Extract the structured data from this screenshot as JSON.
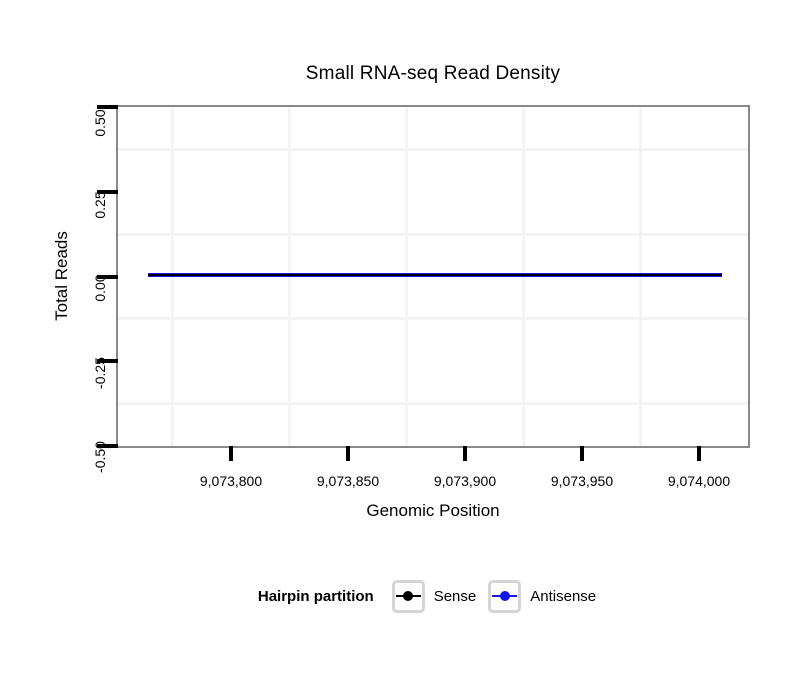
{
  "chart_data": {
    "type": "line",
    "title": "Small RNA-seq Read Density",
    "xlabel": "Genomic Position",
    "ylabel": "Total Reads",
    "x_tick_labels": [
      "9,073,800",
      "9,073,850",
      "9,073,900",
      "9,073,950",
      "9,074,000"
    ],
    "x_tick_values": [
      9073800,
      9073850,
      9073900,
      9073950,
      9074000
    ],
    "y_tick_labels": [
      "0.50",
      "0.25",
      "0.00",
      "-0.25",
      "-0.50"
    ],
    "y_tick_values": [
      0.5,
      0.25,
      0.0,
      -0.25,
      -0.5
    ],
    "xlim": [
      9073752,
      9074023
    ],
    "ylim": [
      -0.5,
      0.5
    ],
    "grid": "minor gridlines only, very light gray",
    "panel_border_color": "#898989",
    "legend_position": "bottom",
    "legend_title": "Hairpin partition",
    "series": [
      {
        "name": "Sense",
        "color": "#000000",
        "shape": "flat horizontal line with point marker in legend",
        "x_start": 9073765,
        "x_end": 9074010,
        "y_constant": 0.0
      },
      {
        "name": "Antisense",
        "color": "#1414E6",
        "shape": "flat horizontal line with point marker in legend",
        "x_start": 9073765,
        "x_end": 9074010,
        "y_constant": 0.0
      }
    ]
  }
}
